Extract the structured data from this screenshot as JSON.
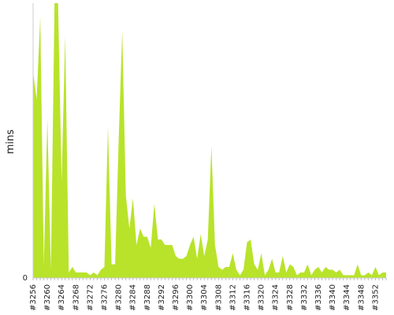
{
  "chart_data": {
    "type": "area",
    "title": "",
    "xlabel": "",
    "ylabel": "mins",
    "ylim": [
      0,
      100
    ],
    "grid": false,
    "legend": "none",
    "color": "#b8e32a",
    "y_tick_labels": [
      "0"
    ],
    "x_tick_labels": [
      "#3256",
      "#3260",
      "#3264",
      "#3268",
      "#3272",
      "#3276",
      "#3280",
      "#3284",
      "#3288",
      "#3292",
      "#3296",
      "#3300",
      "#3304",
      "#3308",
      "#3312",
      "#3316",
      "#3320",
      "#3324",
      "#3328",
      "#3332",
      "#3336",
      "#3340",
      "#3344",
      "#3348",
      "#3352"
    ],
    "x": [
      3256,
      3257,
      3258,
      3259,
      3260,
      3261,
      3262,
      3263,
      3264,
      3265,
      3266,
      3267,
      3268,
      3269,
      3270,
      3271,
      3272,
      3273,
      3274,
      3275,
      3276,
      3277,
      3278,
      3279,
      3280,
      3281,
      3282,
      3283,
      3284,
      3285,
      3286,
      3287,
      3288,
      3289,
      3290,
      3291,
      3292,
      3293,
      3294,
      3295,
      3296,
      3297,
      3298,
      3299,
      3300,
      3301,
      3302,
      3303,
      3304,
      3305,
      3306,
      3307,
      3308,
      3309,
      3310,
      3311,
      3312,
      3313,
      3314,
      3315,
      3316,
      3317,
      3318,
      3319,
      3320,
      3321,
      3322,
      3323,
      3324,
      3325,
      3326,
      3327,
      3328,
      3329,
      3330,
      3331,
      3332,
      3333,
      3334,
      3335,
      3336,
      3337,
      3338,
      3339,
      3340,
      3341,
      3342,
      3343,
      3344,
      3345,
      3346,
      3347,
      3348,
      3349,
      3350,
      3351,
      3352,
      3353,
      3354,
      3355
    ],
    "series": [
      {
        "values": [
          75,
          65,
          95,
          5,
          58,
          3,
          100,
          100,
          35,
          88,
          2,
          4,
          2,
          2,
          2,
          2,
          1,
          2,
          1,
          3,
          4,
          55,
          5,
          5,
          50,
          90,
          30,
          18,
          29,
          12,
          18,
          15,
          15,
          11,
          27,
          14,
          14,
          12,
          12,
          12,
          8,
          7,
          7,
          8,
          12,
          15,
          7,
          16,
          8,
          14,
          48,
          12,
          4,
          3,
          4,
          4,
          9,
          3,
          1,
          3,
          13,
          14,
          5,
          3,
          9,
          1,
          3,
          7,
          2,
          2,
          8,
          2,
          5,
          4,
          1,
          2,
          2,
          5,
          1,
          3,
          4,
          2,
          4,
          3,
          3,
          2,
          3,
          1,
          1,
          1,
          1,
          5,
          1,
          1,
          2,
          1,
          4,
          1,
          2,
          2
        ]
      }
    ]
  }
}
